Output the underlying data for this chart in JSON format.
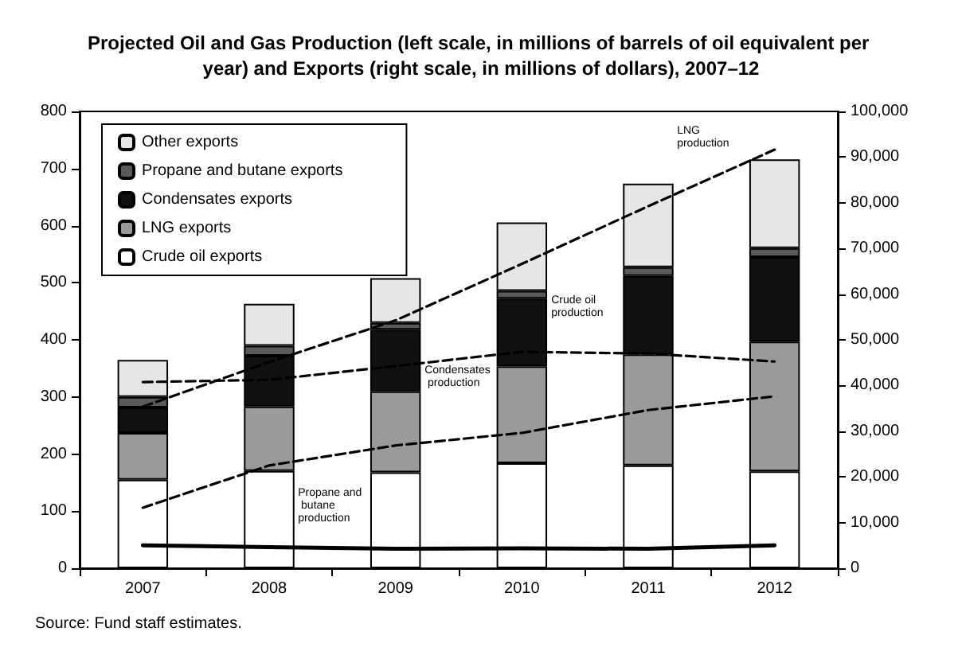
{
  "chart_data": {
    "type": "bar",
    "title": "Projected Oil and Gas Production (left scale, in millions of barrels of oil equivalent per year) and Exports (right scale, in millions of dollars), 2007–12",
    "categories": [
      "2007",
      "2008",
      "2009",
      "2010",
      "2011",
      "2012"
    ],
    "stacked": true,
    "series": [
      {
        "name": "Crude oil exports",
        "color": "#ffffff",
        "axis": "y2",
        "values": [
          19400,
          21300,
          21000,
          23000,
          22500,
          21200
        ]
      },
      {
        "name": "LNG exports",
        "color": "#9a9a9a",
        "axis": "y2",
        "values": [
          10200,
          14100,
          17700,
          21200,
          24300,
          28400
        ]
      },
      {
        "name": "Condensates exports",
        "color": "#111111",
        "axis": "y2",
        "values": [
          5600,
          11100,
          13500,
          14800,
          17200,
          18500
        ]
      },
      {
        "name": "Propane and butane exports",
        "color": "#5a5a5a",
        "axis": "y2",
        "values": [
          2300,
          2200,
          1500,
          1700,
          1900,
          2000
        ]
      },
      {
        "name": "Other exports",
        "color": "#e6e6e6",
        "axis": "y2",
        "values": [
          8100,
          9200,
          9800,
          15000,
          18300,
          19400
        ]
      },
      {
        "type": "line",
        "color": "#000000",
        "line_style": "dashed",
        "values": [
          283,
          361,
          434,
          533,
          634,
          733
        ]
      },
      {
        "type": "line",
        "color": "#000000",
        "line_style": "dashed",
        "values": [
          326,
          330,
          354,
          379,
          376,
          362
        ]
      },
      {
        "type": "line",
        "color": "#000000",
        "line_style": "dashed",
        "values": [
          106,
          180,
          215,
          237,
          277,
          301
        ]
      },
      {
        "type": "line",
        "color": "#000000",
        "line_style": "solid",
        "values": [
          40,
          37,
          34,
          35,
          34,
          40
        ]
      }
    ],
    "ylim": [
      0,
      800
    ],
    "yticks": [
      0,
      100,
      200,
      300,
      400,
      500,
      600,
      700,
      800
    ],
    "y2lim": [
      0,
      100000
    ],
    "y2ticks": [
      0,
      {
        "value": 10000,
        "label": "10,000"
      },
      {
        "value": 20000,
        "label": "20,000"
      },
      {
        "value": 30000,
        "label": "30,000"
      },
      {
        "value": 40000,
        "label": "40,000"
      },
      {
        "value": 50000,
        "label": "50,000"
      },
      {
        "value": 60000,
        "label": "60,000"
      },
      {
        "value": 70000,
        "label": "70,000"
      },
      {
        "value": 80000,
        "label": "80,000"
      },
      {
        "value": 90000,
        "label": "90,000"
      },
      {
        "value": 100000,
        "label": "100,000"
      }
    ],
    "grid": false,
    "legend": "top left",
    "marker": "none",
    "annotations": [
      "LNG production",
      "Crude oil production",
      "Condensates production",
      "Propane and butane production",
      "Source: Fund staff estimates."
    ]
  }
}
